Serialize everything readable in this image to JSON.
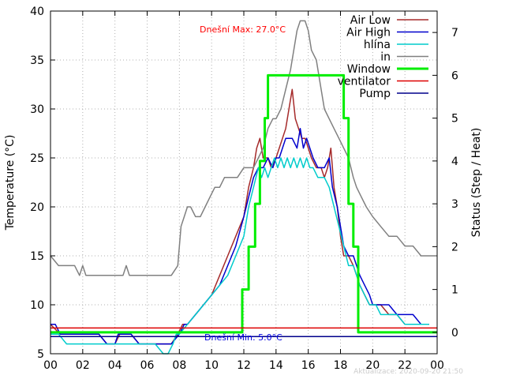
{
  "chart_data": {
    "type": "line",
    "title": "",
    "ylabel": "Temperature (°C)",
    "y2label": "Status (Step / Heat)",
    "xlim": [
      0,
      24
    ],
    "ylim": [
      5,
      40
    ],
    "y2lim": [
      -0.5,
      7.5
    ],
    "x_tick_labels": [
      "00",
      "02",
      "04",
      "06",
      "08",
      "10",
      "12",
      "14",
      "16",
      "18",
      "20",
      "22",
      "00"
    ],
    "y_ticks": [
      5,
      10,
      15,
      20,
      25,
      30,
      35,
      40
    ],
    "y2_ticks": [
      0,
      1,
      2,
      3,
      4,
      5,
      6,
      7
    ],
    "grid": true,
    "legend_position": "top-right",
    "annotations": {
      "max_label": "Dnešní Max: 27.0°C",
      "min_label": "Dnešní Min: 5.0°C",
      "updated": "Aktualizace: 2020-09-20 21:50"
    },
    "series": [
      {
        "name": "Air Low",
        "axis": "y",
        "color": "#a52a2a",
        "points": [
          [
            0,
            8
          ],
          [
            0.3,
            7.5
          ],
          [
            0.6,
            7
          ],
          [
            1,
            7
          ],
          [
            2,
            7
          ],
          [
            3,
            7
          ],
          [
            3.5,
            6
          ],
          [
            4,
            6
          ],
          [
            4.3,
            7
          ],
          [
            4.5,
            7
          ],
          [
            5,
            7
          ],
          [
            5.5,
            6
          ],
          [
            6,
            6
          ],
          [
            7,
            6
          ],
          [
            7.5,
            6
          ],
          [
            7.9,
            7
          ],
          [
            8.2,
            8
          ],
          [
            8.5,
            8
          ],
          [
            9,
            9
          ],
          [
            9.5,
            10
          ],
          [
            10,
            11
          ],
          [
            10.5,
            13
          ],
          [
            11,
            15
          ],
          [
            11.5,
            17
          ],
          [
            12,
            19
          ],
          [
            12.3,
            22
          ],
          [
            12.6,
            24
          ],
          [
            12.8,
            26
          ],
          [
            13,
            27
          ],
          [
            13.2,
            25
          ],
          [
            13.5,
            25
          ],
          [
            13.7,
            24
          ],
          [
            14,
            25
          ],
          [
            14.2,
            26
          ],
          [
            14.4,
            27
          ],
          [
            14.6,
            28
          ],
          [
            14.8,
            30
          ],
          [
            15,
            32
          ],
          [
            15.2,
            29
          ],
          [
            15.4,
            28
          ],
          [
            15.6,
            27
          ],
          [
            15.8,
            27
          ],
          [
            16,
            26
          ],
          [
            16.2,
            25
          ],
          [
            16.5,
            24
          ],
          [
            16.8,
            24
          ],
          [
            17,
            23
          ],
          [
            17.2,
            24
          ],
          [
            17.4,
            26
          ],
          [
            17.6,
            22
          ],
          [
            17.8,
            20
          ],
          [
            18,
            17
          ],
          [
            18.2,
            15
          ],
          [
            18.5,
            15
          ],
          [
            18.8,
            14
          ],
          [
            19,
            13
          ],
          [
            19.2,
            12
          ],
          [
            19.5,
            11
          ],
          [
            19.8,
            10
          ],
          [
            20,
            10
          ],
          [
            20.5,
            10
          ],
          [
            21,
            9
          ],
          [
            21.5,
            9
          ],
          [
            22,
            8
          ],
          [
            22.5,
            8
          ],
          [
            23,
            8
          ],
          [
            23.5,
            8
          ]
        ]
      },
      {
        "name": "Air High",
        "axis": "y",
        "color": "#0000cd",
        "points": [
          [
            0,
            8
          ],
          [
            0.3,
            8
          ],
          [
            0.6,
            7
          ],
          [
            1,
            7
          ],
          [
            2,
            7
          ],
          [
            3,
            7
          ],
          [
            3.5,
            6
          ],
          [
            4,
            6
          ],
          [
            4.2,
            7
          ],
          [
            4.5,
            7
          ],
          [
            5,
            7
          ],
          [
            5.5,
            6
          ],
          [
            6,
            6
          ],
          [
            7,
            6
          ],
          [
            7.5,
            6
          ],
          [
            8,
            7
          ],
          [
            8.3,
            8
          ],
          [
            8.5,
            8
          ],
          [
            9,
            9
          ],
          [
            9.5,
            10
          ],
          [
            10,
            11
          ],
          [
            10.5,
            12
          ],
          [
            11,
            14
          ],
          [
            11.5,
            16
          ],
          [
            12,
            19
          ],
          [
            12.3,
            21
          ],
          [
            12.6,
            23
          ],
          [
            12.9,
            24
          ],
          [
            13.2,
            24
          ],
          [
            13.5,
            25
          ],
          [
            13.8,
            24
          ],
          [
            14,
            25
          ],
          [
            14.2,
            25
          ],
          [
            14.4,
            26
          ],
          [
            14.6,
            27
          ],
          [
            14.8,
            27
          ],
          [
            15,
            27
          ],
          [
            15.3,
            26
          ],
          [
            15.5,
            28
          ],
          [
            15.7,
            26
          ],
          [
            15.9,
            27
          ],
          [
            16.1,
            26
          ],
          [
            16.3,
            25
          ],
          [
            16.6,
            24
          ],
          [
            17,
            24
          ],
          [
            17.3,
            25
          ],
          [
            17.5,
            22
          ],
          [
            17.8,
            20
          ],
          [
            18,
            18
          ],
          [
            18.2,
            16
          ],
          [
            18.5,
            15
          ],
          [
            18.8,
            15
          ],
          [
            19,
            14
          ],
          [
            19.2,
            13
          ],
          [
            19.5,
            12
          ],
          [
            19.8,
            11
          ],
          [
            20,
            10
          ],
          [
            20.5,
            10
          ],
          [
            21,
            10
          ],
          [
            21.5,
            9
          ],
          [
            22,
            9
          ],
          [
            22.5,
            9
          ],
          [
            23,
            8
          ],
          [
            23.5,
            8
          ]
        ]
      },
      {
        "name": "hlína",
        "axis": "y",
        "color": "#00cccc",
        "points": [
          [
            0,
            7
          ],
          [
            0.5,
            7
          ],
          [
            1,
            6
          ],
          [
            2,
            6
          ],
          [
            3,
            6
          ],
          [
            4,
            6
          ],
          [
            5,
            6
          ],
          [
            6,
            6
          ],
          [
            6.5,
            6
          ],
          [
            7,
            5
          ],
          [
            7.3,
            5
          ],
          [
            7.6,
            6
          ],
          [
            7.8,
            7
          ],
          [
            8,
            7
          ],
          [
            8.5,
            8
          ],
          [
            9,
            9
          ],
          [
            9.5,
            10
          ],
          [
            10,
            11
          ],
          [
            10.5,
            12
          ],
          [
            11,
            13
          ],
          [
            11.5,
            15
          ],
          [
            12,
            17
          ],
          [
            12.3,
            20
          ],
          [
            12.6,
            22
          ],
          [
            12.9,
            24
          ],
          [
            13.1,
            23
          ],
          [
            13.3,
            24
          ],
          [
            13.5,
            23
          ],
          [
            13.7,
            24
          ],
          [
            13.9,
            25
          ],
          [
            14.1,
            24
          ],
          [
            14.3,
            25
          ],
          [
            14.5,
            24
          ],
          [
            14.7,
            25
          ],
          [
            14.9,
            24
          ],
          [
            15.1,
            25
          ],
          [
            15.3,
            24
          ],
          [
            15.5,
            25
          ],
          [
            15.7,
            24
          ],
          [
            15.9,
            25
          ],
          [
            16.1,
            24
          ],
          [
            16.3,
            24
          ],
          [
            16.6,
            23
          ],
          [
            17,
            23
          ],
          [
            17.3,
            22
          ],
          [
            17.6,
            20
          ],
          [
            17.9,
            18
          ],
          [
            18.2,
            16
          ],
          [
            18.5,
            14
          ],
          [
            18.8,
            14
          ],
          [
            19,
            13
          ],
          [
            19.2,
            12
          ],
          [
            19.5,
            11
          ],
          [
            19.8,
            10
          ],
          [
            20.2,
            10
          ],
          [
            20.5,
            9
          ],
          [
            21,
            9
          ],
          [
            21.5,
            9
          ],
          [
            22,
            8
          ],
          [
            22.5,
            8
          ],
          [
            23,
            8
          ],
          [
            23.5,
            8
          ]
        ]
      },
      {
        "name": "in",
        "axis": "y",
        "color": "#808080",
        "points": [
          [
            0,
            15
          ],
          [
            0.5,
            14
          ],
          [
            1,
            14
          ],
          [
            1.5,
            14
          ],
          [
            1.8,
            13
          ],
          [
            2,
            14
          ],
          [
            2.2,
            13
          ],
          [
            3,
            13
          ],
          [
            4,
            13
          ],
          [
            4.5,
            13
          ],
          [
            4.7,
            14
          ],
          [
            4.9,
            13
          ],
          [
            5,
            13
          ],
          [
            6,
            13
          ],
          [
            7,
            13
          ],
          [
            7.5,
            13
          ],
          [
            7.9,
            14
          ],
          [
            8.1,
            18
          ],
          [
            8.3,
            19
          ],
          [
            8.5,
            20
          ],
          [
            8.7,
            20
          ],
          [
            9,
            19
          ],
          [
            9.3,
            19
          ],
          [
            9.6,
            20
          ],
          [
            9.9,
            21
          ],
          [
            10.2,
            22
          ],
          [
            10.5,
            22
          ],
          [
            10.8,
            23
          ],
          [
            11.2,
            23
          ],
          [
            11.6,
            23
          ],
          [
            12,
            24
          ],
          [
            12.3,
            24
          ],
          [
            12.6,
            24
          ],
          [
            12.9,
            25
          ],
          [
            13.2,
            26
          ],
          [
            13.5,
            28
          ],
          [
            13.8,
            29
          ],
          [
            14,
            29
          ],
          [
            14.3,
            30
          ],
          [
            14.6,
            32
          ],
          [
            14.9,
            34
          ],
          [
            15.1,
            36
          ],
          [
            15.3,
            38
          ],
          [
            15.5,
            39
          ],
          [
            15.8,
            39
          ],
          [
            16,
            38
          ],
          [
            16.2,
            36
          ],
          [
            16.5,
            35
          ],
          [
            16.8,
            32
          ],
          [
            17,
            30
          ],
          [
            17.3,
            29
          ],
          [
            17.6,
            28
          ],
          [
            17.9,
            27
          ],
          [
            18.2,
            26
          ],
          [
            18.5,
            25
          ],
          [
            18.8,
            23
          ],
          [
            19,
            22
          ],
          [
            19.3,
            21
          ],
          [
            19.6,
            20
          ],
          [
            20,
            19
          ],
          [
            20.5,
            18
          ],
          [
            21,
            17
          ],
          [
            21.5,
            17
          ],
          [
            22,
            16
          ],
          [
            22.5,
            16
          ],
          [
            23,
            15
          ],
          [
            23.5,
            15
          ],
          [
            24,
            15
          ]
        ]
      },
      {
        "name": "Window",
        "axis": "y2",
        "color": "#00ee00",
        "bold": true,
        "points": [
          [
            0,
            0
          ],
          [
            11.9,
            0
          ],
          [
            11.9,
            1
          ],
          [
            12.3,
            1
          ],
          [
            12.3,
            2
          ],
          [
            12.7,
            2
          ],
          [
            12.7,
            3
          ],
          [
            13.0,
            3
          ],
          [
            13.0,
            4
          ],
          [
            13.3,
            4
          ],
          [
            13.3,
            5
          ],
          [
            13.5,
            5
          ],
          [
            13.5,
            6
          ],
          [
            18.2,
            6
          ],
          [
            18.2,
            5
          ],
          [
            18.5,
            5
          ],
          [
            18.5,
            3
          ],
          [
            18.8,
            3
          ],
          [
            18.8,
            2
          ],
          [
            19.1,
            2
          ],
          [
            19.1,
            0
          ],
          [
            24,
            0
          ]
        ]
      },
      {
        "name": "ventilator",
        "axis": "y2",
        "color": "#dd0000",
        "points": [
          [
            0,
            0.1
          ],
          [
            24,
            0.1
          ]
        ]
      },
      {
        "name": "Pump",
        "axis": "y2",
        "color": "#00008b",
        "points": [
          [
            0,
            -0.1
          ],
          [
            24,
            -0.1
          ]
        ]
      }
    ]
  }
}
